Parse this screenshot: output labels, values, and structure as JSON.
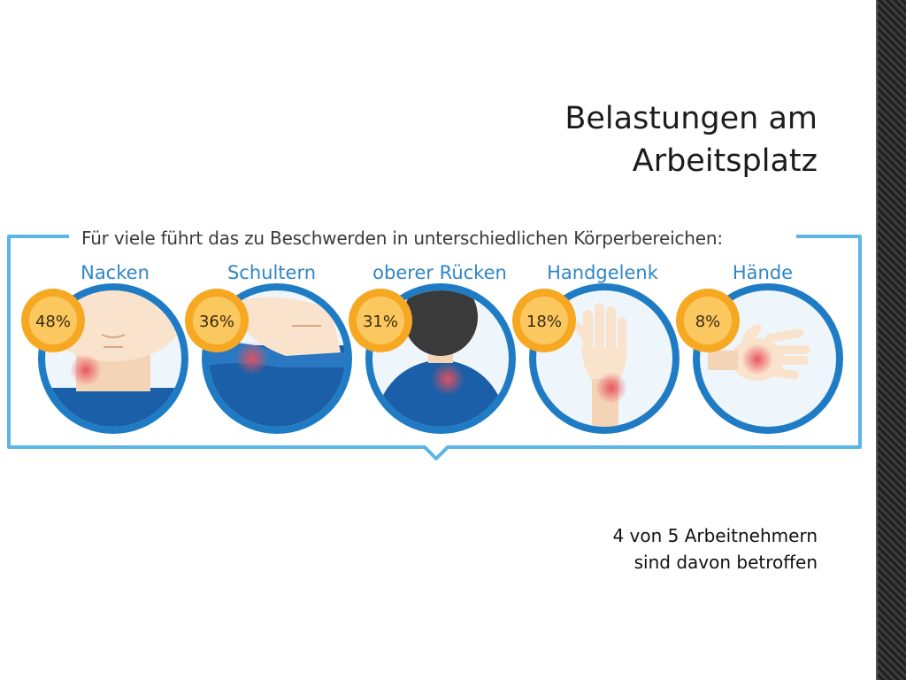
{
  "title": {
    "line1": "Belastungen am",
    "line2": "Arbeitsplatz"
  },
  "intro": "Für viele führt das zu Beschwerden in unterschiedlichen Körperbereichen:",
  "areas": [
    {
      "label": "Nacken",
      "percent": "48%"
    },
    {
      "label": "Schultern",
      "percent": "36%"
    },
    {
      "label": "oberer Rücken",
      "percent": "31%"
    },
    {
      "label": "Handgelenk",
      "percent": "18%"
    },
    {
      "label": "Hände",
      "percent": "8%"
    }
  ],
  "footer": {
    "line1": "4 von 5 Arbeitnehmern",
    "line2": "sind davon betroffen"
  },
  "colors": {
    "accent_blue": "#2f86c9",
    "frame_blue": "#5bb6e6",
    "badge_orange": "#f7a823",
    "pain_red": "#e8505b"
  }
}
